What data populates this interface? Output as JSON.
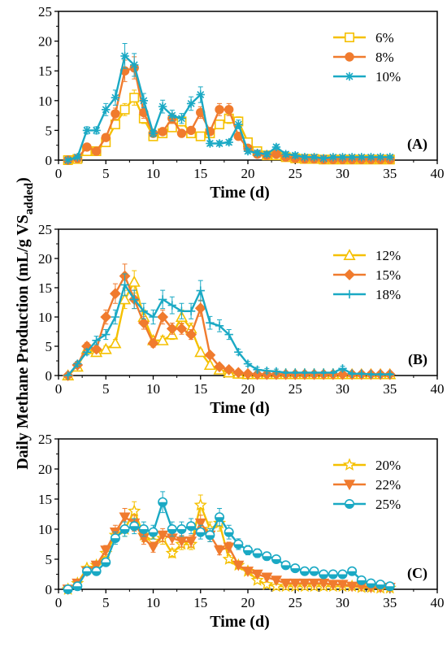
{
  "ylabel_main": "Daily Methane Production (mL/g VS",
  "ylabel_sub": "added",
  "ylabel_close": ")",
  "chart_data": [
    {
      "type": "line",
      "panel_label": "(A)",
      "xlabel": "Time (d)",
      "xlim": [
        0,
        40
      ],
      "ylim": [
        0,
        25
      ],
      "xticks": [
        0,
        5,
        10,
        15,
        20,
        25,
        30,
        35,
        40
      ],
      "yticks": [
        0,
        5,
        10,
        15,
        20,
        25
      ],
      "legend_position": "top-right",
      "x": [
        1,
        2,
        3,
        4,
        5,
        6,
        7,
        8,
        9,
        10,
        11,
        12,
        13,
        14,
        15,
        16,
        17,
        18,
        19,
        20,
        21,
        22,
        23,
        24,
        25,
        26,
        27,
        28,
        29,
        30,
        31,
        32,
        33,
        34,
        35
      ],
      "series": [
        {
          "name": "6%",
          "color": "#F5C000",
          "marker": "square-open",
          "values": [
            0,
            0.2,
            1.5,
            1.5,
            3,
            6,
            8.5,
            10.5,
            7,
            4,
            4.5,
            5.5,
            6.5,
            4.5,
            4,
            4.5,
            6,
            7,
            6.5,
            3,
            1.5,
            0.8,
            0.8,
            0.5,
            0.3,
            0.2,
            0.2,
            0.1,
            0.1,
            0.1,
            0.1,
            0.1,
            0.1,
            0.1,
            0.1
          ]
        },
        {
          "name": "8%",
          "color": "#F07B2E",
          "marker": "circle-filled",
          "values": [
            0,
            0.3,
            2.2,
            1.5,
            3.8,
            7.8,
            15,
            15.5,
            8,
            4.5,
            4.8,
            7,
            4.5,
            5,
            8,
            4.8,
            8.5,
            8.5,
            4,
            2,
            1,
            0.8,
            1,
            0.5,
            0.3,
            0.2,
            0.2,
            0.1,
            0.1,
            0.1,
            0.1,
            0.1,
            0.1,
            0.1,
            0.1
          ]
        },
        {
          "name": "10%",
          "color": "#1AA9C4",
          "marker": "asterisk",
          "values": [
            0,
            0.5,
            5,
            5,
            8.5,
            10.5,
            17.5,
            16,
            10,
            4.5,
            9,
            7.5,
            7,
            9.5,
            11,
            2.8,
            2.8,
            3,
            6,
            1.5,
            1.2,
            1,
            2.2,
            1,
            0.8,
            0.5,
            0.5,
            0.3,
            0.5,
            0.5,
            0.5,
            0.5,
            0.5,
            0.5,
            0.5
          ]
        }
      ]
    },
    {
      "type": "line",
      "panel_label": "(B)",
      "xlabel": "Time (d)",
      "xlim": [
        0,
        40
      ],
      "ylim": [
        0,
        25
      ],
      "xticks": [
        0,
        5,
        10,
        15,
        20,
        25,
        30,
        35,
        40
      ],
      "yticks": [
        0,
        5,
        10,
        15,
        20,
        25
      ],
      "legend_position": "top-right",
      "x": [
        1,
        2,
        3,
        4,
        5,
        6,
        7,
        8,
        9,
        10,
        11,
        12,
        13,
        14,
        15,
        16,
        17,
        18,
        19,
        20,
        21,
        22,
        23,
        24,
        25,
        26,
        27,
        28,
        29,
        30,
        31,
        32,
        33,
        34,
        35
      ],
      "series": [
        {
          "name": "12%",
          "color": "#F5C000",
          "marker": "triangle-open",
          "values": [
            0,
            1.5,
            4.5,
            4,
            4.5,
            5.5,
            13,
            16,
            10,
            6,
            6,
            7,
            10,
            8,
            4,
            1.8,
            1,
            0.5,
            0.3,
            0.2,
            0.2,
            0.2,
            0.2,
            0.2,
            0.2,
            0.2,
            0.2,
            0.2,
            0.2,
            0.2,
            0.2,
            0.2,
            0.2,
            0.2,
            0.2
          ]
        },
        {
          "name": "15%",
          "color": "#F07B2E",
          "marker": "diamond-filled",
          "values": [
            0,
            1.8,
            5,
            4.5,
            10,
            14,
            17,
            13,
            9,
            5.5,
            10,
            8,
            8,
            7,
            11.5,
            3.5,
            1.5,
            1,
            0.5,
            0.3,
            0.2,
            0.2,
            0.2,
            0.2,
            0.2,
            0.2,
            0.2,
            0.2,
            0.2,
            0.2,
            0.2,
            0.2,
            0.2,
            0.2,
            0.2
          ]
        },
        {
          "name": "18%",
          "color": "#1AA9C4",
          "marker": "plus",
          "values": [
            0,
            2,
            4,
            6,
            7,
            10,
            15.5,
            13,
            11,
            10,
            13,
            12,
            11,
            11,
            14.5,
            9,
            8.5,
            7,
            4,
            2,
            1,
            0.8,
            0.7,
            0.5,
            0.5,
            0.5,
            0.5,
            0.5,
            0.5,
            1.2,
            0.3,
            0.3,
            0.2,
            0.2,
            0.2
          ]
        }
      ]
    },
    {
      "type": "line",
      "panel_label": "(C)",
      "xlabel": "Time (d)",
      "xlim": [
        0,
        40
      ],
      "ylim": [
        0,
        25
      ],
      "xticks": [
        0,
        5,
        10,
        15,
        20,
        25,
        30,
        35,
        40
      ],
      "yticks": [
        0,
        5,
        10,
        15,
        20,
        25
      ],
      "legend_position": "top-right",
      "x": [
        1,
        2,
        3,
        4,
        5,
        6,
        7,
        8,
        9,
        10,
        11,
        12,
        13,
        14,
        15,
        16,
        17,
        18,
        19,
        20,
        21,
        22,
        23,
        24,
        25,
        26,
        27,
        28,
        29,
        30,
        31,
        32,
        33,
        34,
        35
      ],
      "series": [
        {
          "name": "20%",
          "color": "#F5C000",
          "marker": "star-open",
          "values": [
            0,
            1,
            3.5,
            4,
            6,
            9,
            10,
            13,
            9,
            8,
            8.5,
            6,
            7.5,
            7.5,
            14,
            10,
            11,
            5,
            4,
            3,
            1.5,
            0.8,
            0.5,
            0.5,
            0.5,
            0.5,
            0.5,
            0.5,
            0.5,
            0.5,
            0.5,
            0.3,
            0.3,
            0.2,
            0.2
          ]
        },
        {
          "name": "22%",
          "color": "#F07B2E",
          "marker": "triangle-down-filled",
          "values": [
            0,
            1,
            3,
            4,
            6.5,
            9.5,
            12,
            11,
            8.5,
            7,
            9,
            8.5,
            8,
            8,
            11,
            9,
            6.5,
            7,
            4,
            3,
            2.5,
            2,
            1.5,
            1,
            1,
            1,
            1,
            1,
            0.8,
            0.8,
            0.5,
            0.5,
            0.3,
            0.3,
            0.3
          ]
        },
        {
          "name": "25%",
          "color": "#1AA9C4",
          "marker": "circle-half",
          "values": [
            0,
            0.5,
            3,
            3,
            4.5,
            8.5,
            10,
            10.5,
            10,
            9.5,
            14.5,
            10,
            10,
            10.5,
            9.5,
            9,
            12,
            9.5,
            7.5,
            6.5,
            6,
            5.5,
            5,
            4,
            3.5,
            3,
            3,
            2.5,
            2.5,
            2.5,
            3,
            1.5,
            1,
            0.8,
            0.5
          ]
        }
      ]
    }
  ]
}
